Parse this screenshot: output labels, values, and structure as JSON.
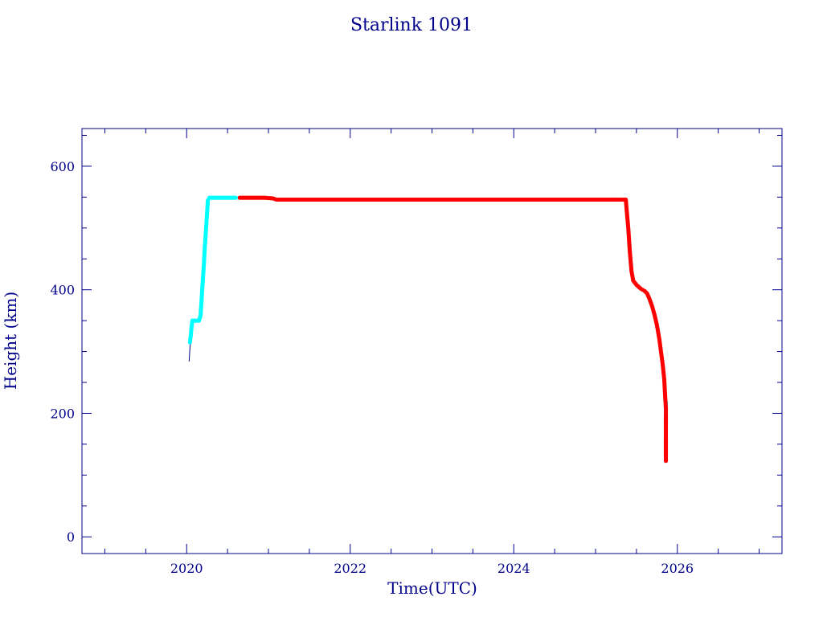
{
  "chart_data": {
    "type": "line",
    "title": "Starlink 1091",
    "xlabel": "Time(UTC)",
    "ylabel": "Height (km)",
    "xlim": [
      2018.72,
      2027.28
    ],
    "ylim": [
      -27,
      661
    ],
    "x_ticks": [
      2020,
      2022,
      2024,
      2026
    ],
    "x_tick_labels": [
      "2020",
      "2022",
      "2024",
      "2026"
    ],
    "y_ticks": [
      0,
      200,
      400,
      600
    ],
    "y_tick_labels": [
      "0",
      "200",
      "400",
      "600"
    ],
    "grid": false,
    "colors": {
      "axis": "#00008b",
      "cyan": "#00ffff",
      "red": "#ff0000",
      "line": "#00008b"
    },
    "series": [
      {
        "color": "line",
        "style": "line",
        "points": [
          [
            2020.03,
            284
          ],
          [
            2020.04,
            305
          ],
          [
            2020.05,
            318
          ],
          [
            2020.06,
            345
          ],
          [
            2020.07,
            350
          ],
          [
            2020.15,
            350
          ],
          [
            2020.17,
            352
          ],
          [
            2020.18,
            380
          ],
          [
            2020.2,
            430
          ],
          [
            2020.22,
            480
          ],
          [
            2020.24,
            520
          ],
          [
            2020.26,
            548
          ],
          [
            2020.6,
            549
          ],
          [
            2021.05,
            549
          ],
          [
            2021.08,
            546
          ],
          [
            2025.37,
            546
          ],
          [
            2025.45,
            416
          ],
          [
            2025.62,
            395
          ],
          [
            2025.7,
            370
          ],
          [
            2025.78,
            320
          ],
          [
            2025.84,
            240
          ],
          [
            2025.85,
            170
          ],
          [
            2025.86,
            123
          ]
        ]
      },
      {
        "color": "cyan",
        "style": "marker",
        "points": [
          [
            2020.04,
            315
          ],
          [
            2020.05,
            325
          ],
          [
            2020.06,
            340
          ],
          [
            2020.07,
            350
          ],
          [
            2020.09,
            350
          ],
          [
            2020.11,
            350
          ],
          [
            2020.13,
            350
          ],
          [
            2020.15,
            350
          ],
          [
            2020.17,
            358
          ],
          [
            2020.18,
            378
          ],
          [
            2020.19,
            400
          ],
          [
            2020.2,
            420
          ],
          [
            2020.21,
            440
          ],
          [
            2020.22,
            465
          ],
          [
            2020.23,
            485
          ],
          [
            2020.24,
            505
          ],
          [
            2020.25,
            525
          ],
          [
            2020.26,
            545
          ],
          [
            2020.28,
            549
          ],
          [
            2020.32,
            549
          ],
          [
            2020.36,
            549
          ],
          [
            2020.4,
            549
          ],
          [
            2020.44,
            549
          ],
          [
            2020.48,
            549
          ],
          [
            2020.52,
            549
          ],
          [
            2020.56,
            549
          ],
          [
            2020.6,
            549
          ],
          [
            2025.86,
            184
          ],
          [
            2025.86,
            218
          ]
        ]
      },
      {
        "color": "red",
        "style": "marker",
        "points": [
          [
            2020.65,
            549
          ],
          [
            2020.75,
            549
          ],
          [
            2020.85,
            549
          ],
          [
            2020.95,
            549
          ],
          [
            2021.05,
            548
          ],
          [
            2021.1,
            546
          ],
          [
            2021.3,
            546
          ],
          [
            2021.5,
            546
          ],
          [
            2021.7,
            546
          ],
          [
            2021.9,
            546
          ],
          [
            2022.1,
            546
          ],
          [
            2022.3,
            546
          ],
          [
            2022.5,
            546
          ],
          [
            2022.7,
            546
          ],
          [
            2022.9,
            546
          ],
          [
            2023.1,
            546
          ],
          [
            2023.3,
            546
          ],
          [
            2023.5,
            546
          ],
          [
            2023.7,
            546
          ],
          [
            2023.9,
            546
          ],
          [
            2024.1,
            546
          ],
          [
            2024.3,
            546
          ],
          [
            2024.5,
            546
          ],
          [
            2024.7,
            546
          ],
          [
            2024.9,
            546
          ],
          [
            2025.1,
            546
          ],
          [
            2025.3,
            546
          ],
          [
            2025.37,
            546
          ],
          [
            2025.38,
            530
          ],
          [
            2025.4,
            500
          ],
          [
            2025.42,
            460
          ],
          [
            2025.44,
            430
          ],
          [
            2025.46,
            415
          ],
          [
            2025.5,
            408
          ],
          [
            2025.55,
            402
          ],
          [
            2025.6,
            398
          ],
          [
            2025.63,
            394
          ],
          [
            2025.66,
            385
          ],
          [
            2025.69,
            374
          ],
          [
            2025.72,
            360
          ],
          [
            2025.75,
            343
          ],
          [
            2025.78,
            320
          ],
          [
            2025.8,
            300
          ],
          [
            2025.82,
            280
          ],
          [
            2025.84,
            255
          ],
          [
            2025.85,
            230
          ],
          [
            2025.86,
            208
          ],
          [
            2025.86,
            198
          ],
          [
            2025.86,
            170
          ],
          [
            2025.86,
            123
          ]
        ]
      }
    ]
  }
}
